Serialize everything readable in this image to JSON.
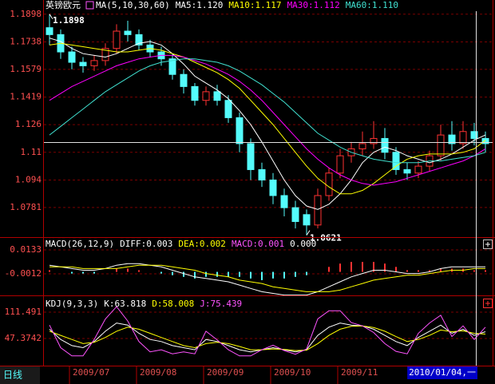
{
  "chart_data": [
    {
      "type": "candlestick",
      "title": "英镑欧元",
      "subtitle": "MA(5,10,30,60)",
      "period": "日线",
      "categories": [
        null,
        null,
        "2009/07",
        null,
        null,
        null,
        null,
        null,
        "2009/08",
        null,
        null,
        null,
        null,
        null,
        "2009/09",
        null,
        null,
        null,
        null,
        null,
        "2009/10",
        null,
        null,
        null,
        null,
        null,
        "2009/11",
        null,
        null,
        null,
        null,
        null,
        null,
        null,
        null,
        null,
        null,
        null,
        null,
        "2010/01/04,一"
      ],
      "open": [
        1.182,
        1.178,
        1.168,
        1.162,
        1.16,
        1.163,
        1.17,
        1.18,
        1.178,
        1.172,
        1.168,
        1.164,
        1.155,
        1.148,
        1.14,
        1.145,
        1.14,
        1.13,
        1.115,
        1.1,
        1.094,
        1.085,
        1.078,
        1.074,
        1.068,
        1.085,
        1.098,
        1.108,
        1.112,
        1.115,
        1.118,
        1.11,
        1.1,
        1.098,
        1.102,
        1.108,
        1.12,
        1.115,
        1.122,
        1.118
      ],
      "high": [
        1.1898,
        1.181,
        1.171,
        1.165,
        1.166,
        1.173,
        1.184,
        1.186,
        1.181,
        1.175,
        1.171,
        1.167,
        1.158,
        1.15,
        1.148,
        1.149,
        1.143,
        1.133,
        1.118,
        1.104,
        1.098,
        1.089,
        1.082,
        1.077,
        1.089,
        1.101,
        1.112,
        1.116,
        1.122,
        1.128,
        1.124,
        1.113,
        1.104,
        1.105,
        1.111,
        1.126,
        1.128,
        1.128,
        1.127,
        1.122
      ],
      "low": [
        1.172,
        1.164,
        1.158,
        1.156,
        1.157,
        1.16,
        1.167,
        1.174,
        1.169,
        1.165,
        1.16,
        1.152,
        1.144,
        1.137,
        1.137,
        1.137,
        1.127,
        1.11,
        1.094,
        1.09,
        1.08,
        1.073,
        1.066,
        1.0621,
        1.066,
        1.082,
        1.095,
        1.104,
        1.108,
        1.112,
        1.106,
        1.097,
        1.094,
        1.095,
        1.099,
        1.105,
        1.111,
        1.112,
        1.114,
        1.11
      ],
      "close": [
        1.178,
        1.168,
        1.162,
        1.16,
        1.163,
        1.17,
        1.18,
        1.178,
        1.172,
        1.168,
        1.164,
        1.155,
        1.148,
        1.14,
        1.145,
        1.14,
        1.13,
        1.115,
        1.1,
        1.094,
        1.085,
        1.078,
        1.07,
        1.068,
        1.085,
        1.098,
        1.108,
        1.112,
        1.115,
        1.118,
        1.11,
        1.1,
        1.098,
        1.102,
        1.108,
        1.12,
        1.115,
        1.122,
        1.118,
        1.115
      ],
      "up_color": "#ff3232",
      "down_color": "#54fcfc",
      "series": [
        {
          "name": "MA5:1.120",
          "color": "#ffffff",
          "values": [
            1.176,
            1.174,
            1.17,
            1.167,
            1.166,
            1.165,
            1.167,
            1.17,
            1.173,
            1.174,
            1.172,
            1.167,
            1.161,
            1.154,
            1.15,
            1.146,
            1.141,
            1.134,
            1.126,
            1.116,
            1.105,
            1.094,
            1.085,
            1.079,
            1.077,
            1.08,
            1.086,
            1.094,
            1.104,
            1.11,
            1.113,
            1.111,
            1.108,
            1.106,
            1.104,
            1.106,
            1.109,
            1.113,
            1.117,
            1.12
          ]
        },
        {
          "name": "MA10:1.117",
          "color": "#ffff00",
          "values": [
            1.172,
            1.173,
            1.172,
            1.171,
            1.17,
            1.169,
            1.168,
            1.168,
            1.169,
            1.17,
            1.169,
            1.167,
            1.165,
            1.162,
            1.159,
            1.156,
            1.152,
            1.147,
            1.14,
            1.133,
            1.126,
            1.118,
            1.11,
            1.102,
            1.095,
            1.09,
            1.086,
            1.086,
            1.088,
            1.092,
            1.097,
            1.102,
            1.106,
            1.108,
            1.109,
            1.109,
            1.109,
            1.11,
            1.112,
            1.117
          ]
        },
        {
          "name": "MA30:1.112",
          "color": "#ff00ff",
          "values": [
            1.14,
            1.144,
            1.148,
            1.151,
            1.154,
            1.157,
            1.16,
            1.162,
            1.164,
            1.165,
            1.166,
            1.166,
            1.165,
            1.163,
            1.161,
            1.158,
            1.155,
            1.151,
            1.146,
            1.14,
            1.133,
            1.126,
            1.119,
            1.112,
            1.106,
            1.101,
            1.097,
            1.094,
            1.092,
            1.091,
            1.092,
            1.093,
            1.095,
            1.097,
            1.099,
            1.101,
            1.103,
            1.105,
            1.108,
            1.112
          ]
        },
        {
          "name": "MA60:1.110",
          "color": "#40e0d0",
          "values": [
            1.12,
            1.125,
            1.13,
            1.135,
            1.14,
            1.145,
            1.149,
            1.153,
            1.157,
            1.16,
            1.162,
            1.163,
            1.164,
            1.164,
            1.163,
            1.162,
            1.16,
            1.157,
            1.153,
            1.149,
            1.144,
            1.139,
            1.133,
            1.127,
            1.121,
            1.117,
            1.113,
            1.11,
            1.108,
            1.106,
            1.105,
            1.104,
            1.104,
            1.104,
            1.105,
            1.105,
            1.106,
            1.107,
            1.108,
            1.11
          ]
        }
      ],
      "ylim": [
        1.061,
        1.198
      ],
      "yticks": [
        1.1898,
        1.1738,
        1.1579,
        1.1419,
        1.126,
        1.11,
        1.094,
        1.0781
      ],
      "yticks_labels_note": null,
      "grid": true
    },
    {
      "type": "bar",
      "title": "MACD(26,12,9)",
      "bar_name": "MACD:0.001",
      "bar_name_color": "#ff54ff",
      "extra_label": "0.000",
      "values": [
        0.001,
        0,
        -0.001,
        -0.001,
        -0.001,
        0,
        0.002,
        0.002,
        0.001,
        0,
        -0.001,
        -0.002,
        -0.003,
        -0.004,
        -0.003,
        -0.003,
        -0.003,
        -0.003,
        -0.004,
        -0.005,
        -0.004,
        -0.004,
        -0.003,
        -0.002,
        0,
        0.003,
        0.005,
        0.006,
        0.006,
        0.006,
        0.005,
        0.003,
        0.001,
        0.001,
        0.001,
        0.002,
        0.002,
        0.002,
        0.001,
        0.001
      ],
      "up_color": "#ff3232",
      "down_color": "#54fcfc",
      "series": [
        {
          "name": "DIFF:0.003",
          "color": "#ffffff",
          "values": [
            0.004,
            0.003,
            0.002,
            0.001,
            0.001,
            0.002,
            0.004,
            0.005,
            0.005,
            0.004,
            0.003,
            0.001,
            -0.001,
            -0.003,
            -0.004,
            -0.005,
            -0.006,
            -0.008,
            -0.01,
            -0.012,
            -0.013,
            -0.014,
            -0.014,
            -0.014,
            -0.012,
            -0.009,
            -0.006,
            -0.003,
            -0.001,
            0.001,
            0.001,
            0.0,
            -0.001,
            -0.001,
            0.0,
            0.002,
            0.003,
            0.003,
            0.003,
            0.003
          ]
        },
        {
          "name": "DEA:0.002",
          "color": "#ffff00",
          "values": [
            0.003,
            0.003,
            0.003,
            0.002,
            0.002,
            0.002,
            0.002,
            0.003,
            0.004,
            0.004,
            0.004,
            0.003,
            0.002,
            0.001,
            -0.001,
            -0.002,
            -0.003,
            -0.005,
            -0.006,
            -0.007,
            -0.009,
            -0.01,
            -0.011,
            -0.012,
            -0.012,
            -0.012,
            -0.011,
            -0.009,
            -0.007,
            -0.005,
            -0.004,
            -0.003,
            -0.002,
            -0.002,
            -0.001,
            0.0,
            0.001,
            0.001,
            0.002,
            0.002
          ]
        }
      ],
      "ylim": [
        -0.0142,
        0.0205
      ],
      "yticks": [
        0.0133,
        -0.0012
      ],
      "grid": true
    },
    {
      "type": "line",
      "title": "KDJ(9,3,3)",
      "series": [
        {
          "name": "K:63.818",
          "color": "#ffffff",
          "values": [
            70,
            45,
            30,
            25,
            40,
            65,
            85,
            80,
            60,
            45,
            40,
            30,
            25,
            20,
            45,
            40,
            30,
            20,
            15,
            20,
            25,
            20,
            15,
            20,
            55,
            75,
            85,
            80,
            78,
            70,
            55,
            40,
            30,
            50,
            65,
            80,
            60,
            70,
            55,
            64
          ]
        },
        {
          "name": "D:58.008",
          "color": "#ffff00",
          "values": [
            65,
            55,
            45,
            35,
            38,
            50,
            65,
            75,
            70,
            60,
            50,
            40,
            30,
            25,
            35,
            38,
            35,
            28,
            20,
            20,
            22,
            21,
            18,
            19,
            35,
            55,
            70,
            77,
            78,
            74,
            65,
            52,
            40,
            45,
            55,
            68,
            64,
            66,
            60,
            58
          ]
        },
        {
          "name": "J:75.439",
          "color": "#ff54ff",
          "values": [
            80,
            25,
            5,
            5,
            45,
            95,
            125,
            90,
            40,
            15,
            20,
            10,
            15,
            10,
            65,
            44,
            20,
            5,
            5,
            20,
            31,
            18,
            9,
            22,
            95,
            115,
            115,
            86,
            78,
            62,
            35,
            16,
            10,
            60,
            85,
            104,
            52,
            78,
            45,
            75
          ]
        }
      ],
      "ylim": [
        -18.7,
        150.4
      ],
      "yticks": [
        111.491,
        47.3742
      ],
      "grid": true
    }
  ]
}
